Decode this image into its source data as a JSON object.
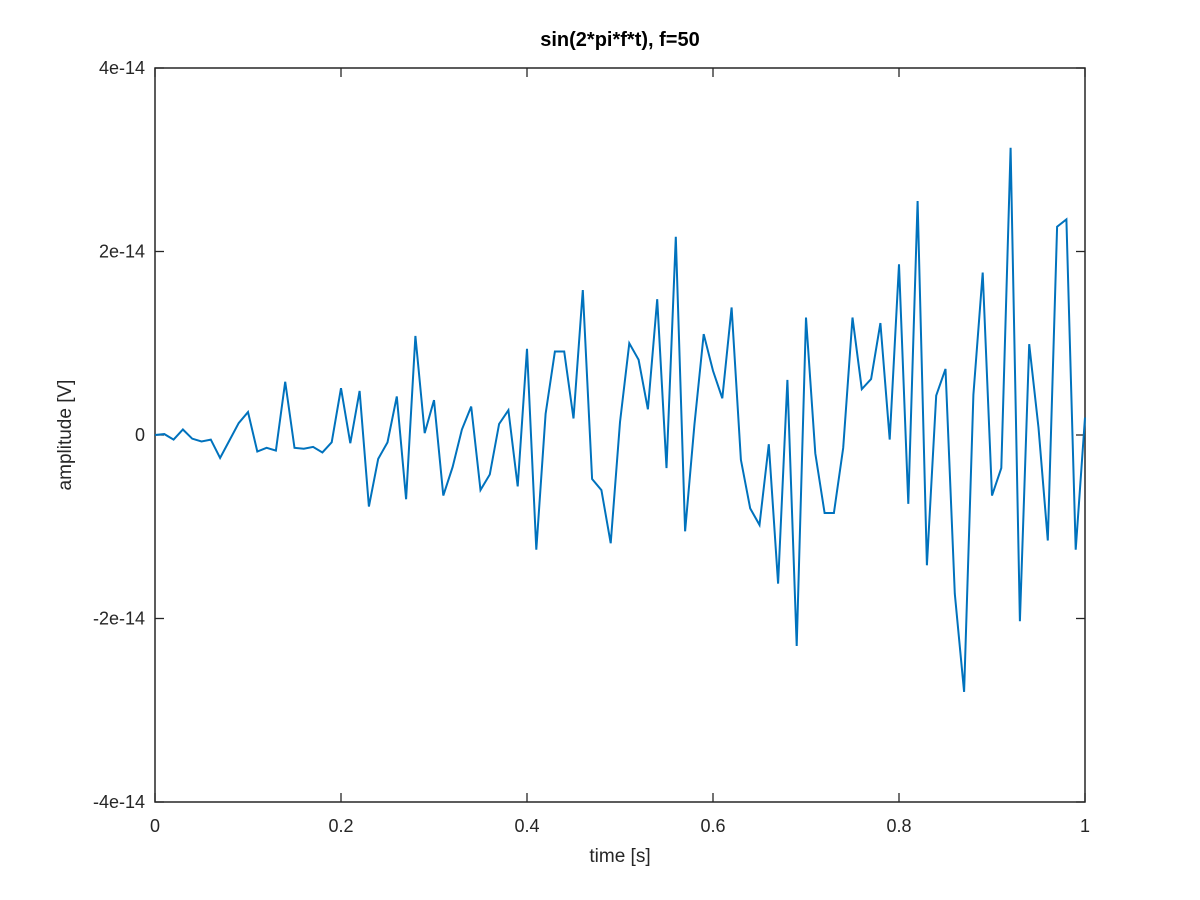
{
  "chart_data": {
    "type": "line",
    "title": "sin(2*pi*f*t), f=50",
    "xlabel": "time [s]",
    "ylabel": "amplitude [V]",
    "xlim": [
      0,
      1
    ],
    "ylim": [
      -4e-14,
      4e-14
    ],
    "grid": false,
    "legend": "none",
    "line_color": "#0072BD",
    "x_ticks": [
      {
        "value": 0,
        "label": "0"
      },
      {
        "value": 0.2,
        "label": "0.2"
      },
      {
        "value": 0.4,
        "label": "0.4"
      },
      {
        "value": 0.6,
        "label": "0.6"
      },
      {
        "value": 0.8,
        "label": "0.8"
      },
      {
        "value": 1,
        "label": "1"
      }
    ],
    "y_ticks": [
      {
        "value": -4e-14,
        "label": "-4e-14"
      },
      {
        "value": -2e-14,
        "label": "-2e-14"
      },
      {
        "value": 0,
        "label": "0"
      },
      {
        "value": 2e-14,
        "label": "2e-14"
      },
      {
        "value": 4e-14,
        "label": "4e-14"
      }
    ],
    "series": [
      {
        "x": [
          0,
          0.01,
          0.02,
          0.03,
          0.04,
          0.05,
          0.06,
          0.07,
          0.08,
          0.09,
          0.1,
          0.11,
          0.12,
          0.13,
          0.14,
          0.15,
          0.16,
          0.17,
          0.18,
          0.19,
          0.2,
          0.21,
          0.22,
          0.23,
          0.24,
          0.25,
          0.26,
          0.27,
          0.28,
          0.29,
          0.3,
          0.31,
          0.32,
          0.33,
          0.34,
          0.35,
          0.36,
          0.37,
          0.38,
          0.39,
          0.4,
          0.41,
          0.42,
          0.43,
          0.44,
          0.45,
          0.46,
          0.47,
          0.48,
          0.49,
          0.5,
          0.51,
          0.52,
          0.53,
          0.54,
          0.55,
          0.56,
          0.57,
          0.58,
          0.59,
          0.6,
          0.61,
          0.62,
          0.63,
          0.64,
          0.65,
          0.66,
          0.67,
          0.68,
          0.69,
          0.7,
          0.71,
          0.72,
          0.73,
          0.74,
          0.75,
          0.76,
          0.77,
          0.78,
          0.79,
          0.8,
          0.81,
          0.82,
          0.83,
          0.84,
          0.85,
          0.86,
          0.87,
          0.88,
          0.89,
          0.9,
          0.91,
          0.92,
          0.93,
          0.94,
          0.95,
          0.96,
          0.97,
          0.98,
          0.99,
          1.0
        ],
        "values": [
          0,
          1e-16,
          -5e-16,
          6e-16,
          -4e-16,
          -7e-16,
          -5e-16,
          -2.5e-15,
          -6e-16,
          1.3e-15,
          2.5e-15,
          -1.8e-15,
          -1.4e-15,
          -1.7e-15,
          5.8e-15,
          -1.4e-15,
          -1.5e-15,
          -1.3e-15,
          -1.9e-15,
          -8e-16,
          5.1e-15,
          -9e-16,
          4.8e-15,
          -7.8e-15,
          -2.6e-15,
          -8e-16,
          4.2e-15,
          -7e-15,
          1.08e-14,
          2e-16,
          3.8e-15,
          -6.6e-15,
          -3.5e-15,
          6e-16,
          3.1e-15,
          -6e-15,
          -4.3e-15,
          1.2e-15,
          2.7e-15,
          -5.6e-15,
          9.4e-15,
          -1.25e-14,
          2.3e-15,
          9.1e-15,
          9.1e-15,
          1.8e-15,
          1.58e-14,
          -4.8e-15,
          -6e-15,
          -1.18e-14,
          1.4e-15,
          1e-14,
          8.2e-15,
          2.8e-15,
          1.48e-14,
          -3.6e-15,
          2.16e-14,
          -1.05e-14,
          1.1e-15,
          1.1e-14,
          7e-15,
          4e-15,
          1.39e-14,
          -2.7e-15,
          -8e-15,
          -9.8e-15,
          -1e-15,
          -1.62e-14,
          6e-15,
          -2.3e-14,
          1.28e-14,
          -2e-15,
          -8.5e-15,
          -8.5e-15,
          -1.4e-15,
          1.28e-14,
          5e-15,
          6.1e-15,
          1.22e-14,
          -5e-16,
          1.86e-14,
          -7.5e-15,
          2.55e-14,
          -1.42e-14,
          4.3e-15,
          7.2e-15,
          -1.73e-14,
          -2.8e-14,
          4.4e-15,
          1.77e-14,
          -6.6e-15,
          -3.6e-15,
          3.13e-14,
          -2.03e-14,
          9.9e-15,
          8e-16,
          -1.15e-14,
          2.27e-14,
          2.35e-14,
          -1.25e-14,
          1.9e-15
        ]
      }
    ]
  }
}
